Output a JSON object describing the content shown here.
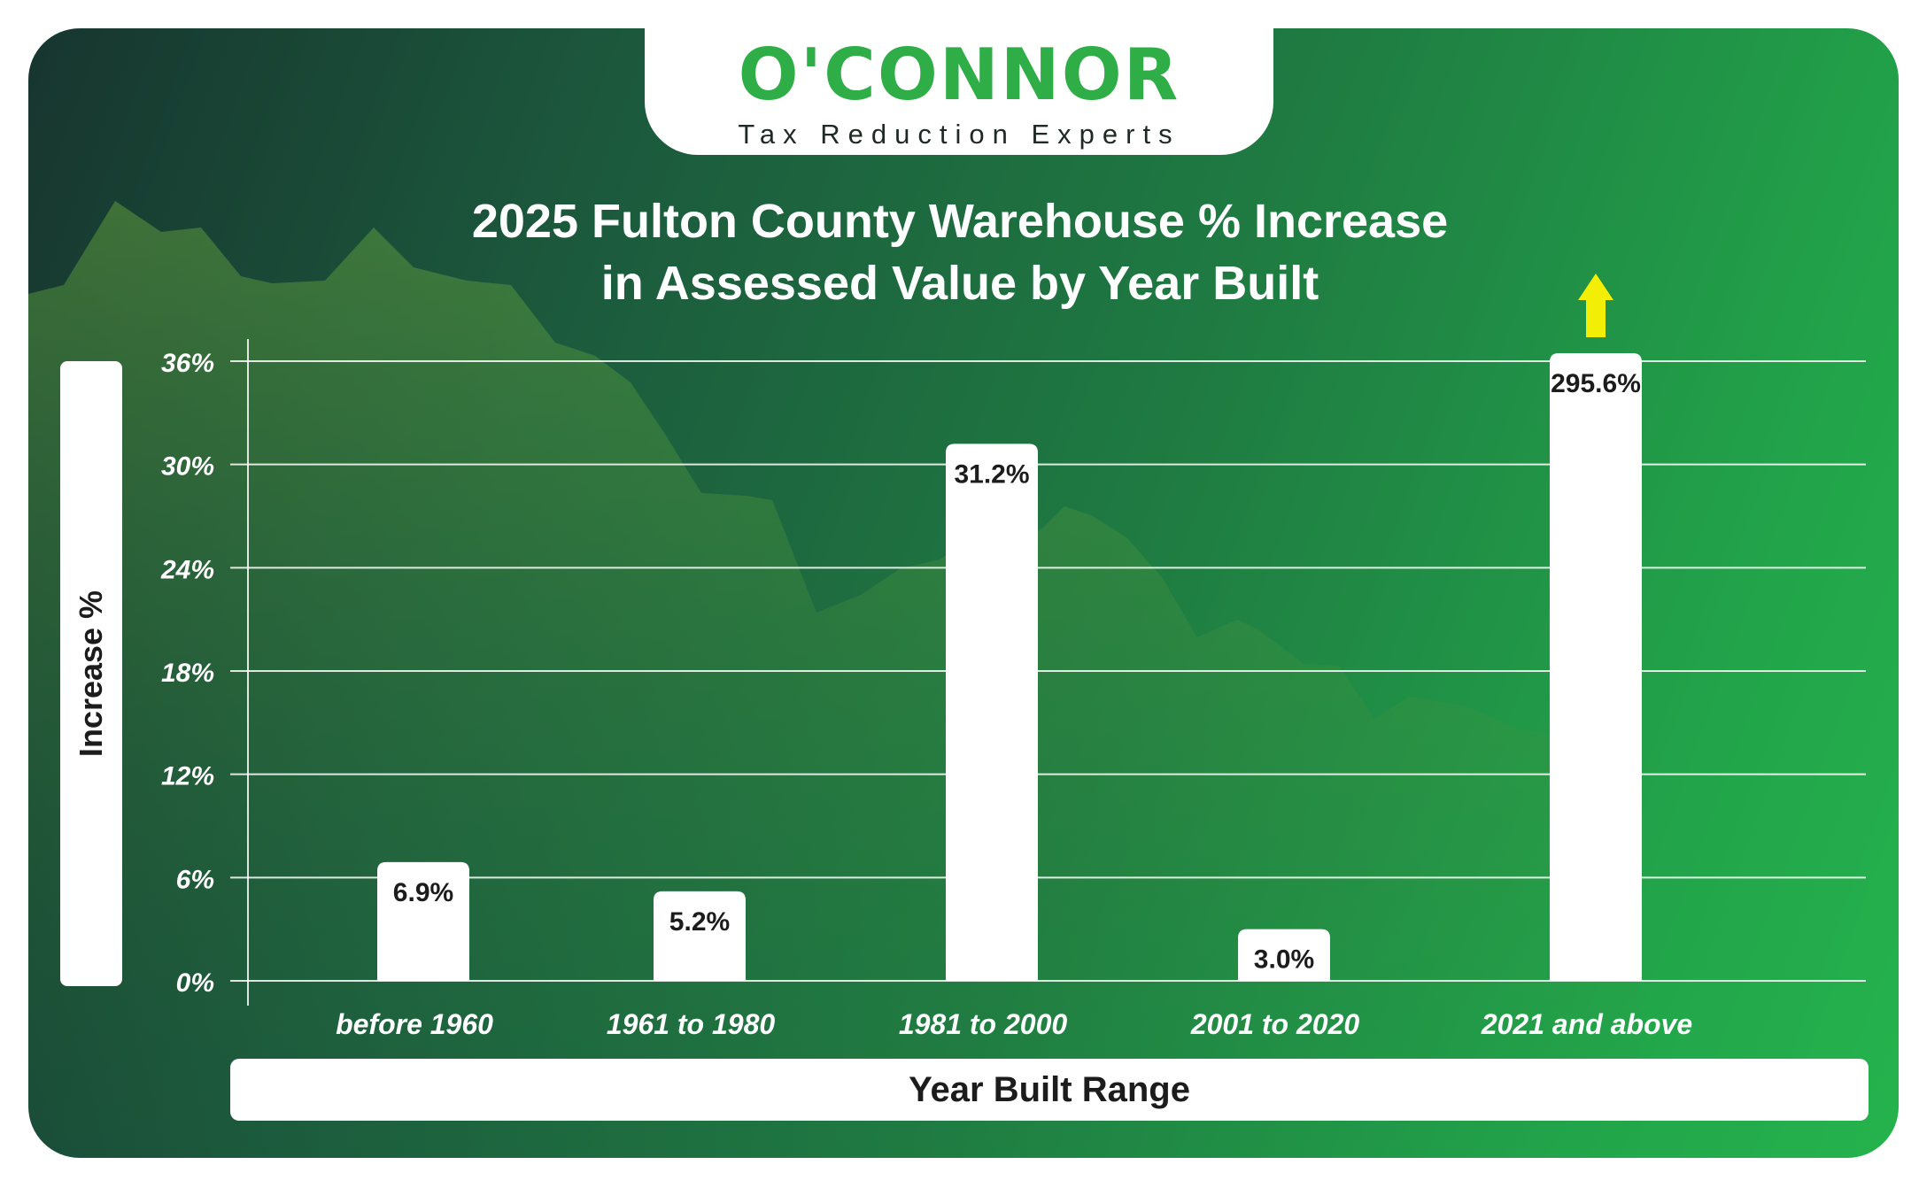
{
  "brand": {
    "name": "O'CONNOR",
    "tagline": "Tax Reduction Experts",
    "primary_color": "#2fae47"
  },
  "chart_data": {
    "type": "bar",
    "title_lines": [
      "2025 Fulton County Warehouse % Increase",
      "in Assessed Value by Year Built"
    ],
    "title": "2025 Fulton County Warehouse % Increase in Assessed Value by Year Built",
    "xlabel": "Year Built Range",
    "ylabel": "Increase %",
    "categories": [
      "before 1960",
      "1961 to 1980",
      "1981 to 2000",
      "2001 to 2020",
      "2021 and above"
    ],
    "values": [
      6.9,
      5.2,
      31.2,
      3.0,
      295.6
    ],
    "data_labels": [
      "6.9%",
      "5.2%",
      "31.2%",
      "3.0%",
      "295.6%"
    ],
    "y_ticks": [
      0,
      6,
      12,
      18,
      24,
      30,
      36
    ],
    "y_tick_labels": [
      "0%",
      "6%",
      "12%",
      "18%",
      "24%",
      "30%",
      "36%"
    ],
    "ylim": [
      0,
      36
    ],
    "grid": true,
    "overflow_indicator": {
      "category": "2021 and above",
      "direction": "up",
      "color": "#f2ee05"
    },
    "bar_color": "#ffffff"
  }
}
